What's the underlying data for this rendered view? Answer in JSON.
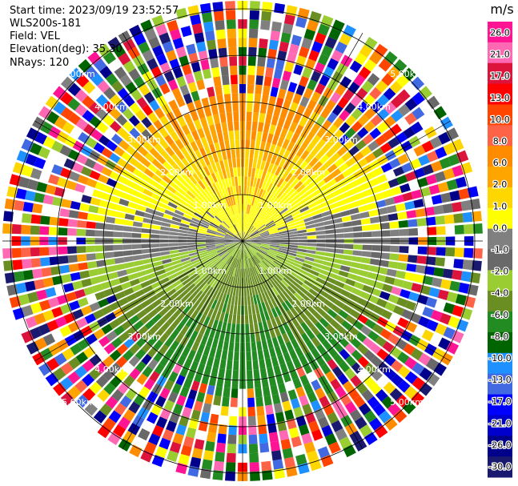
{
  "header": {
    "start_time": "Start time: 2023/09/19 23:52:57",
    "instrument": "WLS200s-181",
    "field": "Field: VEL",
    "elevation": "Elevation(deg): 35.30",
    "nrays": "NRays: 120"
  },
  "colorbar": {
    "unit": "m/s",
    "ticks": [
      "26.0",
      "21.0",
      "17.0",
      "13.0",
      "10.0",
      "8.0",
      "6.0",
      "2.0",
      "1.0",
      "0.0",
      "-1.0",
      "-2.0",
      "-4.0",
      "-6.0",
      "-8.0",
      "-10.0",
      "-13.0",
      "-17.0",
      "-21.0",
      "-26.0",
      "-30.0"
    ],
    "colors": [
      "#ff1493",
      "#ff69b4",
      "#dc143c",
      "#ff0000",
      "#ff4500",
      "#ff6347",
      "#ff8c00",
      "#ffa500",
      "#ffd700",
      "#ffff00",
      "#808080",
      "#696969",
      "#9acd32",
      "#6b8e23",
      "#228b22",
      "#006400",
      "#1e90ff",
      "#4169e1",
      "#0000ff",
      "#0000cd",
      "#00008b",
      "#191970"
    ]
  },
  "chart_data": {
    "type": "ppi",
    "field": "VEL",
    "unit": "m/s",
    "nrays": 120,
    "range_rings_km": [
      "1.00km",
      "2.00km",
      "3.00km",
      "4.00km",
      "5.00km"
    ],
    "pattern": {
      "near_north": "positive (yellow/orange, ~2 to 6 m/s)",
      "near_south": "negative (green, ~-2 to -6 m/s)",
      "east_west_band": "near zero (grey)",
      "far_range": "noise (full color range)"
    }
  }
}
